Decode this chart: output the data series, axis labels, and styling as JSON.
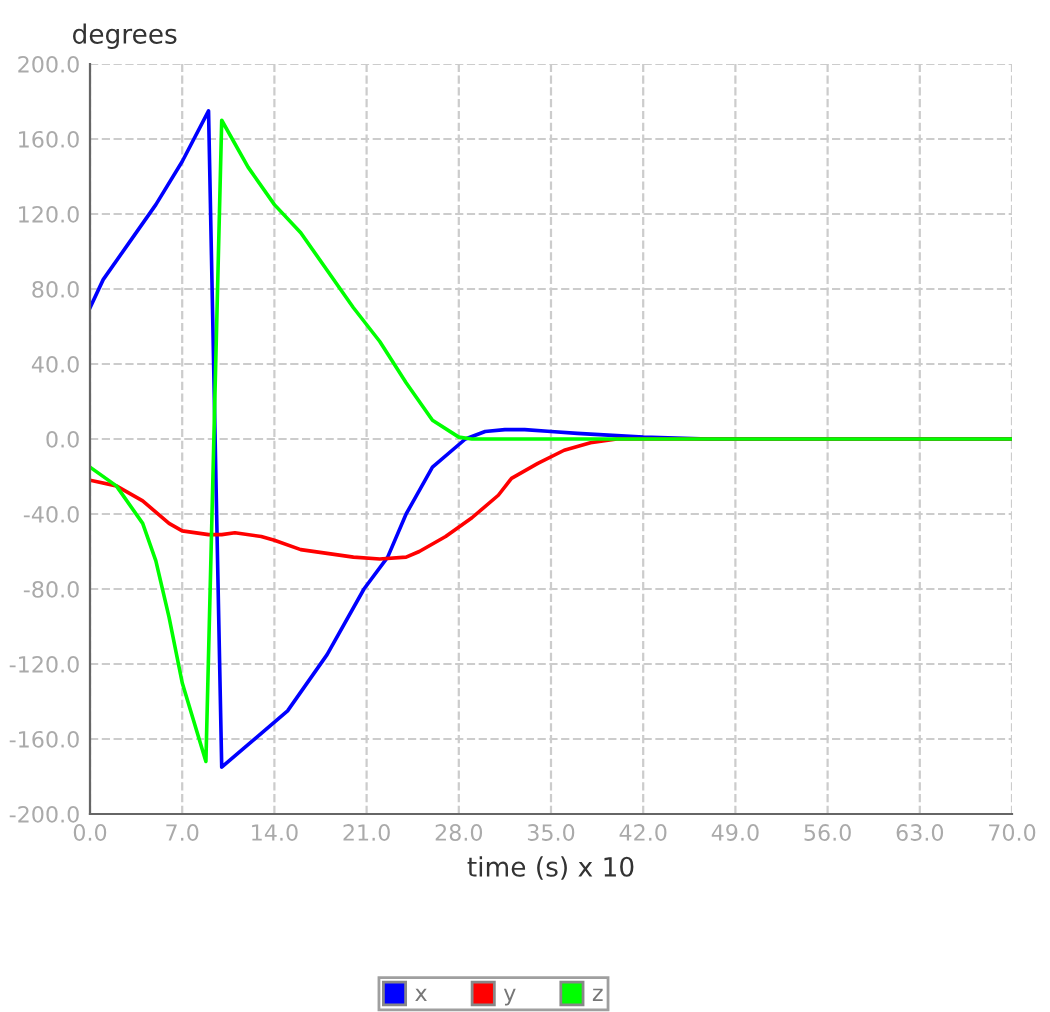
{
  "chart_data": {
    "type": "line",
    "xlabel": "time (s) x 10",
    "ylabel": "degrees",
    "xlim": [
      0,
      70
    ],
    "ylim": [
      -200,
      200
    ],
    "xticks": [
      {
        "value": 0,
        "label": "0.0"
      },
      {
        "value": 7,
        "label": "7.0"
      },
      {
        "value": 14,
        "label": "14.0"
      },
      {
        "value": 21,
        "label": "21.0"
      },
      {
        "value": 28,
        "label": "28.0"
      },
      {
        "value": 35,
        "label": "35.0"
      },
      {
        "value": 42,
        "label": "42.0"
      },
      {
        "value": 49,
        "label": "49.0"
      },
      {
        "value": 56,
        "label": "56.0"
      },
      {
        "value": 63,
        "label": "63.0"
      },
      {
        "value": 70,
        "label": "70.0"
      }
    ],
    "yticks": [
      {
        "value": -200,
        "label": "-200.0"
      },
      {
        "value": -160,
        "label": "-160.0"
      },
      {
        "value": -120,
        "label": "-120.0"
      },
      {
        "value": -80,
        "label": "-80.0"
      },
      {
        "value": -40,
        "label": "-40.0"
      },
      {
        "value": 0,
        "label": "0.0"
      },
      {
        "value": 40,
        "label": "40.0"
      },
      {
        "value": 80,
        "label": "80.0"
      },
      {
        "value": 120,
        "label": "120.0"
      },
      {
        "value": 160,
        "label": "160.0"
      },
      {
        "value": 200,
        "label": "200.0"
      }
    ],
    "grid": true,
    "legend": "bottom",
    "marker": "none",
    "line_style": "solid",
    "series": [
      {
        "name": "x",
        "color": "#0000ff",
        "x": [
          0,
          1,
          3,
          5,
          7,
          9,
          10,
          12,
          15,
          18,
          20.8,
          22.6,
          24,
          26,
          28.5,
          30,
          31.5,
          33,
          35,
          37,
          42,
          47,
          70
        ],
        "values": [
          70,
          85,
          105,
          125,
          148,
          175,
          -175,
          -163,
          -145,
          -115,
          -80,
          -63,
          -40,
          -15,
          0,
          4,
          5,
          5,
          4,
          3,
          1,
          0,
          0
        ]
      },
      {
        "name": "y",
        "color": "#ff0000",
        "x": [
          0,
          2,
          4,
          6,
          7,
          9,
          10,
          11,
          13,
          14,
          16,
          18,
          20,
          22,
          24,
          25,
          27,
          29,
          31,
          32,
          34,
          36,
          38,
          40,
          70
        ],
        "values": [
          -22,
          -25,
          -33,
          -45,
          -49,
          -51,
          -51,
          -50,
          -52,
          -54,
          -59,
          -61,
          -63,
          -64,
          -63,
          -60,
          -52,
          -42,
          -30,
          -21,
          -13,
          -6,
          -2,
          0,
          0
        ]
      },
      {
        "name": "z",
        "color": "#00ff00",
        "x": [
          0,
          2,
          4,
          5,
          6,
          7,
          8.8,
          10,
          12,
          14,
          16,
          18,
          20,
          22,
          24,
          26,
          28,
          29,
          70
        ],
        "values": [
          -15,
          -25,
          -45,
          -65,
          -95,
          -130,
          -172,
          170,
          145,
          125,
          110,
          90,
          70,
          52,
          30,
          10,
          1,
          0,
          0
        ]
      }
    ]
  }
}
